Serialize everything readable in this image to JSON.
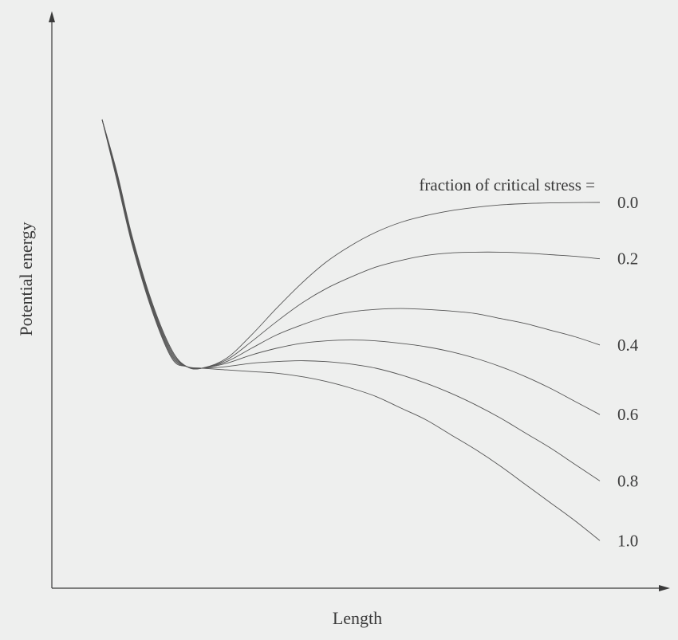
{
  "chart_data": {
    "type": "line",
    "title": "",
    "xlabel": "Length",
    "ylabel": "Potential energy",
    "legend_title": "fraction of critical stress =",
    "legend_placement": "right",
    "grid": false,
    "series": [
      {
        "name": "0.0",
        "x": [
          0.0,
          0.03,
          0.06,
          0.1,
          0.14,
          0.17,
          0.2,
          0.25,
          0.3,
          0.35,
          0.4,
          0.45,
          0.5,
          0.55,
          0.6,
          0.65,
          0.7,
          0.75,
          0.8,
          0.85,
          0.9,
          0.95,
          1.0
        ],
        "y": [
          1.5,
          1.18,
          0.8,
          0.4,
          0.11,
          0.01,
          0.0,
          0.06,
          0.2,
          0.36,
          0.51,
          0.64,
          0.74,
          0.82,
          0.88,
          0.92,
          0.95,
          0.97,
          0.985,
          0.993,
          0.997,
          0.999,
          1.0
        ]
      },
      {
        "name": "0.2",
        "x": [
          0.0,
          0.03,
          0.06,
          0.1,
          0.14,
          0.17,
          0.2,
          0.25,
          0.3,
          0.35,
          0.4,
          0.45,
          0.5,
          0.55,
          0.6,
          0.65,
          0.7,
          0.75,
          0.8,
          0.85,
          0.9,
          0.95,
          1.0
        ],
        "y": [
          1.5,
          1.17,
          0.79,
          0.39,
          0.1,
          0.01,
          0.0,
          0.05,
          0.16,
          0.28,
          0.39,
          0.48,
          0.55,
          0.61,
          0.65,
          0.68,
          0.695,
          0.7,
          0.7,
          0.695,
          0.685,
          0.675,
          0.66
        ]
      },
      {
        "name": "0.4",
        "x": [
          0.0,
          0.03,
          0.06,
          0.1,
          0.14,
          0.17,
          0.2,
          0.25,
          0.3,
          0.35,
          0.4,
          0.45,
          0.5,
          0.55,
          0.6,
          0.65,
          0.7,
          0.75,
          0.8,
          0.85,
          0.9,
          0.95,
          1.0
        ],
        "y": [
          1.5,
          1.16,
          0.78,
          0.38,
          0.09,
          0.01,
          0.0,
          0.04,
          0.12,
          0.2,
          0.26,
          0.31,
          0.34,
          0.355,
          0.36,
          0.355,
          0.345,
          0.33,
          0.3,
          0.27,
          0.23,
          0.19,
          0.14
        ]
      },
      {
        "name": "0.6",
        "x": [
          0.0,
          0.03,
          0.06,
          0.1,
          0.14,
          0.17,
          0.2,
          0.25,
          0.3,
          0.35,
          0.4,
          0.45,
          0.5,
          0.55,
          0.6,
          0.65,
          0.7,
          0.75,
          0.8,
          0.85,
          0.9,
          0.95,
          1.0
        ],
        "y": [
          1.5,
          1.15,
          0.77,
          0.37,
          0.08,
          0.01,
          0.0,
          0.03,
          0.08,
          0.12,
          0.15,
          0.165,
          0.17,
          0.165,
          0.15,
          0.13,
          0.1,
          0.06,
          0.01,
          -0.05,
          -0.12,
          -0.2,
          -0.28
        ]
      },
      {
        "name": "0.8",
        "x": [
          0.0,
          0.03,
          0.06,
          0.1,
          0.14,
          0.17,
          0.2,
          0.25,
          0.3,
          0.35,
          0.4,
          0.45,
          0.5,
          0.55,
          0.6,
          0.65,
          0.7,
          0.75,
          0.8,
          0.85,
          0.9,
          0.95,
          1.0
        ],
        "y": [
          1.5,
          1.14,
          0.76,
          0.36,
          0.07,
          0.01,
          0.0,
          0.01,
          0.03,
          0.04,
          0.045,
          0.04,
          0.025,
          0.0,
          -0.04,
          -0.09,
          -0.15,
          -0.22,
          -0.3,
          -0.39,
          -0.48,
          -0.58,
          -0.68
        ]
      },
      {
        "name": "1.0",
        "x": [
          0.0,
          0.03,
          0.06,
          0.1,
          0.14,
          0.17,
          0.2,
          0.25,
          0.3,
          0.35,
          0.4,
          0.45,
          0.5,
          0.55,
          0.6,
          0.65,
          0.7,
          0.75,
          0.8,
          0.85,
          0.9,
          0.95,
          1.0
        ],
        "y": [
          1.5,
          1.13,
          0.75,
          0.35,
          0.06,
          0.01,
          0.0,
          -0.01,
          -0.02,
          -0.03,
          -0.05,
          -0.08,
          -0.12,
          -0.17,
          -0.24,
          -0.31,
          -0.4,
          -0.49,
          -0.59,
          -0.7,
          -0.81,
          -0.92,
          -1.04
        ]
      }
    ]
  }
}
